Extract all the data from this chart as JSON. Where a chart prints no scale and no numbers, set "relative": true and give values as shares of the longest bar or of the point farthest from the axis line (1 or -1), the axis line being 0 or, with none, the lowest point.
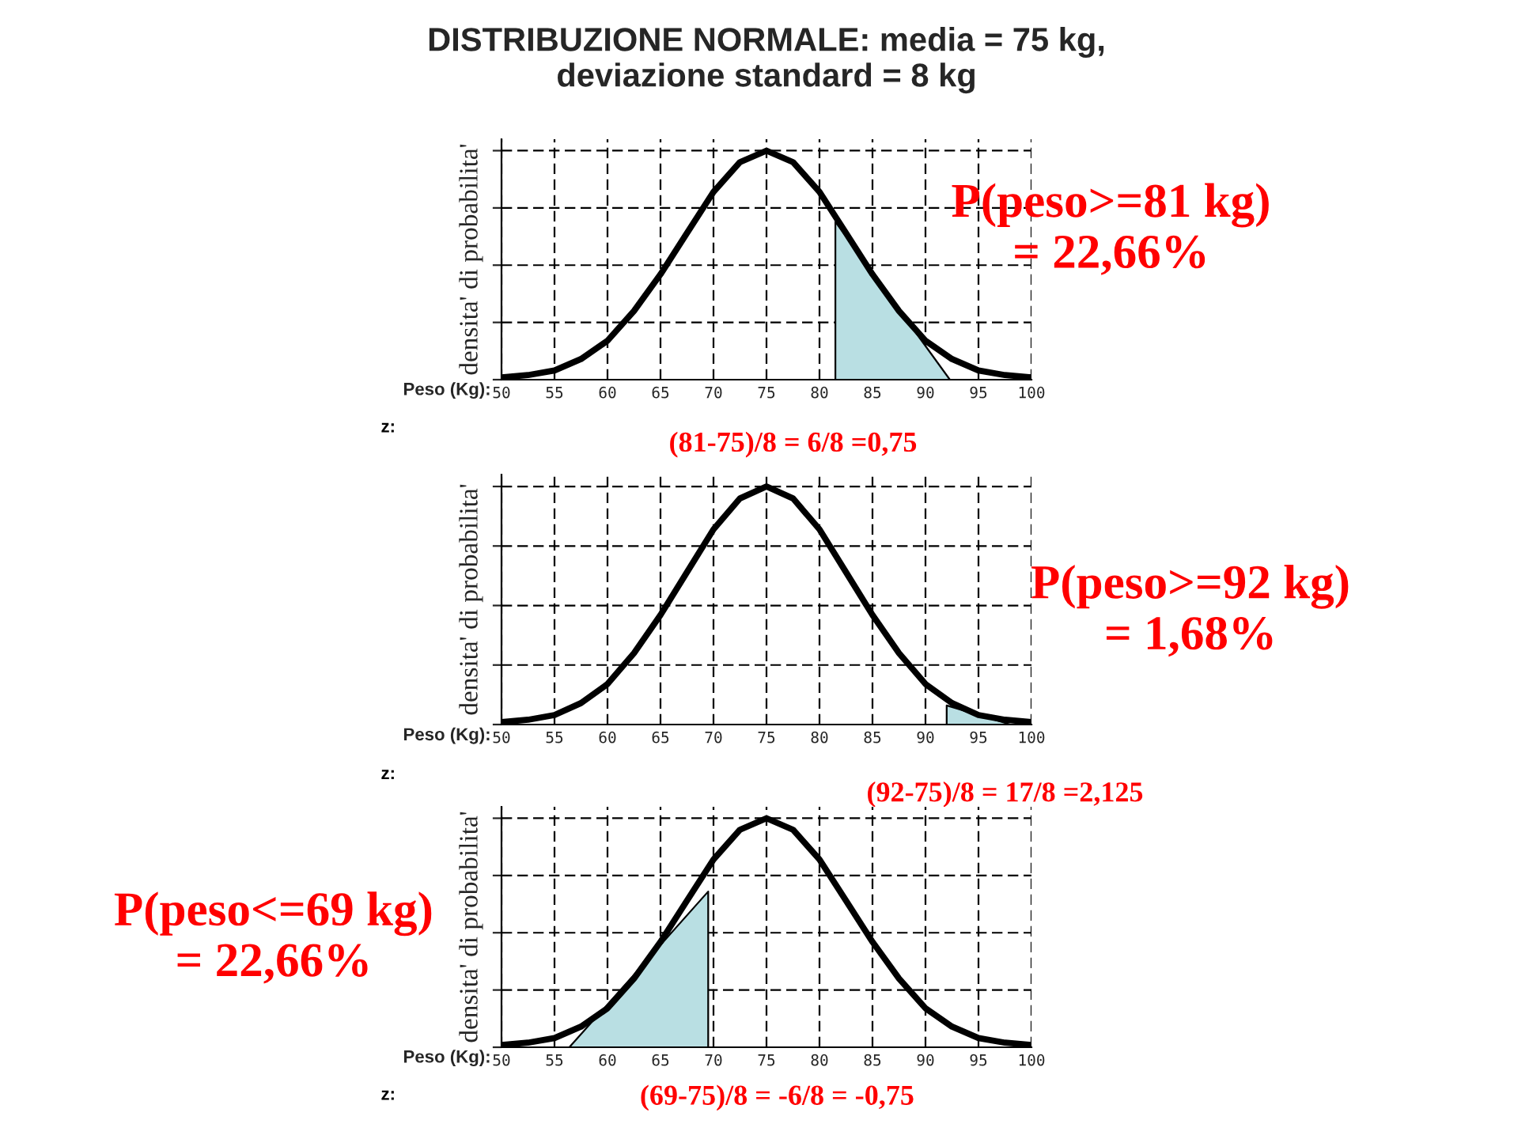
{
  "chart_data": [
    {
      "type": "line",
      "title": "DISTRIBUZIONE NORMALE: media = 75 kg,\ndeviazione standard = 8 kg",
      "xlabel": "Peso (Kg):",
      "ylabel": "densita' di probabilita'",
      "relative": true,
      "grid": true,
      "tick_labels": "x",
      "xlim": [
        50,
        100
      ],
      "xticks": [
        50,
        55,
        60,
        65,
        70,
        75,
        80,
        85,
        90,
        95,
        100
      ],
      "series": [
        {
          "color": "#000000",
          "x": [
            50,
            52.5,
            55,
            57.5,
            60,
            62.5,
            65,
            67.5,
            70,
            72.5,
            75,
            77.5,
            80,
            82.5,
            85,
            87.5,
            90,
            92.5,
            95,
            97.5,
            100
          ],
          "values": [
            0.01,
            0.02,
            0.04,
            0.09,
            0.17,
            0.3,
            0.46,
            0.64,
            0.82,
            0.95,
            1,
            0.95,
            0.82,
            0.64,
            0.46,
            0.3,
            0.17,
            0.09,
            0.04,
            0.02,
            0.01
          ]
        },
        {
          "type": "area",
          "color": "#b9dfe3",
          "x": [
            81.5,
            92.3
          ],
          "values": [
            0.69,
            0
          ]
        }
      ],
      "annotations": [
        "P(peso>=81 kg)\n= 22,66%",
        "z:",
        "(81-75)/8 = 6/8 =0,75"
      ]
    },
    {
      "type": "line",
      "xlabel": "Peso (Kg):",
      "ylabel": "densita' di probabilita'",
      "relative": true,
      "grid": true,
      "tick_labels": "x",
      "xlim": [
        50,
        100
      ],
      "xticks": [
        50,
        55,
        60,
        65,
        70,
        75,
        80,
        85,
        90,
        95,
        100
      ],
      "series": [
        {
          "color": "#000000",
          "x": [
            50,
            52.5,
            55,
            57.5,
            60,
            62.5,
            65,
            67.5,
            70,
            72.5,
            75,
            77.5,
            80,
            82.5,
            85,
            87.5,
            90,
            92.5,
            95,
            97.5,
            100
          ],
          "values": [
            0.01,
            0.02,
            0.04,
            0.09,
            0.17,
            0.3,
            0.46,
            0.64,
            0.82,
            0.95,
            1,
            0.95,
            0.82,
            0.64,
            0.46,
            0.3,
            0.17,
            0.09,
            0.04,
            0.02,
            0.01
          ]
        },
        {
          "type": "area",
          "color": "#b9dfe3",
          "x": [
            92,
            98
          ],
          "values": [
            0.08,
            0
          ]
        }
      ],
      "annotations": [
        "P(peso>=92 kg)\n= 1,68%",
        "z:",
        "(92-75)/8 = 17/8 =2,125"
      ]
    },
    {
      "type": "line",
      "xlabel": "Peso (Kg):",
      "ylabel": "densita' di probabilita'",
      "relative": true,
      "grid": true,
      "tick_labels": "x",
      "xlim": [
        50,
        100
      ],
      "xticks": [
        50,
        55,
        60,
        65,
        70,
        75,
        80,
        85,
        90,
        95,
        100
      ],
      "series": [
        {
          "color": "#000000",
          "x": [
            50,
            52.5,
            55,
            57.5,
            60,
            62.5,
            65,
            67.5,
            70,
            72.5,
            75,
            77.5,
            80,
            82.5,
            85,
            87.5,
            90,
            92.5,
            95,
            97.5,
            100
          ],
          "values": [
            0.01,
            0.02,
            0.04,
            0.09,
            0.17,
            0.3,
            0.46,
            0.64,
            0.82,
            0.95,
            1,
            0.95,
            0.82,
            0.64,
            0.46,
            0.3,
            0.17,
            0.09,
            0.04,
            0.02,
            0.01
          ]
        },
        {
          "type": "area",
          "color": "#b9dfe3",
          "x": [
            56.4,
            69.5
          ],
          "values": [
            0,
            0.68
          ]
        }
      ],
      "annotations": [
        "P(peso<=69 kg)\n= 22,66%",
        "z:",
        "(69-75)/8 = -6/8 = -0,75"
      ]
    }
  ]
}
